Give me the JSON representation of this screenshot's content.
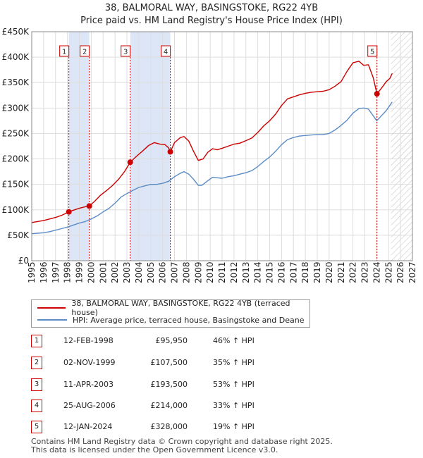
{
  "title_line1": "38, BALMORAL WAY, BASINGSTOKE, RG22 4YB",
  "title_line2": "Price paid vs. HM Land Registry's House Price Index (HPI)",
  "colors": {
    "price_line": "#cc0000",
    "hpi_line": "#5b8cc6",
    "shade": "#dde6f7",
    "marker": "#cc0000",
    "grid": "#dddddd"
  },
  "legend": {
    "price_label": "38, BALMORAL WAY, BASINGSTOKE, RG22 4YB (terraced house)",
    "hpi_label": "HPI: Average price, terraced house, Basingstoke and Deane"
  },
  "sales": [
    {
      "num": "1",
      "date": "12-FEB-1998",
      "price": "£95,950",
      "hpi": "46% ↑ HPI"
    },
    {
      "num": "2",
      "date": "02-NOV-1999",
      "price": "£107,500",
      "hpi": "35% ↑ HPI"
    },
    {
      "num": "3",
      "date": "11-APR-2003",
      "price": "£193,500",
      "hpi": "53% ↑ HPI"
    },
    {
      "num": "4",
      "date": "25-AUG-2006",
      "price": "£214,000",
      "hpi": "33% ↑ HPI"
    },
    {
      "num": "5",
      "date": "12-JAN-2024",
      "price": "£328,000",
      "hpi": "19% ↑ HPI"
    }
  ],
  "footer_line1": "Contains HM Land Registry data © Crown copyright and database right 2025.",
  "footer_line2": "This data is licensed under the Open Government Licence v3.0.",
  "chart_data": {
    "type": "line",
    "title": "38, BALMORAL WAY, BASINGSTOKE, RG22 4YB",
    "subtitle": "Price paid vs. HM Land Registry's House Price Index (HPI)",
    "xlabel": "",
    "ylabel": "",
    "xlim": [
      1995,
      2027
    ],
    "ylim": [
      0,
      450000
    ],
    "y_ticks": [
      0,
      50000,
      100000,
      150000,
      200000,
      250000,
      300000,
      350000,
      400000,
      450000
    ],
    "y_tick_labels": [
      "£0",
      "£50K",
      "£100K",
      "£150K",
      "£200K",
      "£250K",
      "£300K",
      "£350K",
      "£400K",
      "£450K"
    ],
    "x_ticks": [
      1995,
      1996,
      1997,
      1998,
      1999,
      2000,
      2001,
      2002,
      2003,
      2004,
      2005,
      2006,
      2007,
      2008,
      2009,
      2010,
      2011,
      2012,
      2013,
      2014,
      2015,
      2016,
      2017,
      2018,
      2019,
      2020,
      2021,
      2022,
      2023,
      2024,
      2025,
      2026,
      2027
    ],
    "grid": true,
    "legend_position": "bottom",
    "shaded_periods": [
      [
        1998.12,
        1999.84
      ],
      [
        2003.28,
        2006.65
      ]
    ],
    "future_hatch_from": 2025.2,
    "series": [
      {
        "name": "38, BALMORAL WAY, BASINGSTOKE, RG22 4YB (terraced house)",
        "x": [
          1995.0,
          1995.5,
          1996.0,
          1996.5,
          1997.0,
          1997.5,
          1998.12,
          1998.6,
          1999.0,
          1999.5,
          1999.84,
          2000.3,
          2000.8,
          2001.3,
          2001.8,
          2002.3,
          2002.8,
          2003.28,
          2003.8,
          2004.3,
          2004.8,
          2005.3,
          2005.8,
          2006.2,
          2006.5,
          2006.65,
          2007.0,
          2007.5,
          2007.8,
          2008.2,
          2008.6,
          2009.0,
          2009.4,
          2009.8,
          2010.2,
          2010.6,
          2011.0,
          2011.5,
          2012.0,
          2012.5,
          2013.0,
          2013.5,
          2014.0,
          2014.5,
          2015.0,
          2015.5,
          2016.0,
          2016.5,
          2017.0,
          2017.5,
          2018.0,
          2018.5,
          2019.0,
          2019.5,
          2020.0,
          2020.5,
          2021.0,
          2021.5,
          2022.0,
          2022.5,
          2022.9,
          2023.3,
          2023.7,
          2024.02,
          2024.4,
          2024.8,
          2025.1,
          2025.3
        ],
        "values": [
          75000,
          77000,
          79000,
          82000,
          85000,
          89000,
          95950,
          100000,
          103000,
          106000,
          107500,
          117000,
          129000,
          138000,
          148000,
          160000,
          175000,
          193500,
          205000,
          215000,
          226000,
          232000,
          229000,
          228000,
          222000,
          214000,
          232000,
          242000,
          244000,
          235000,
          215000,
          197000,
          200000,
          213000,
          220000,
          218000,
          221000,
          225000,
          229000,
          231000,
          236000,
          241000,
          252000,
          265000,
          275000,
          288000,
          305000,
          318000,
          322000,
          326000,
          329000,
          331000,
          332000,
          333000,
          336000,
          343000,
          352000,
          372000,
          389000,
          392000,
          384000,
          385000,
          360000,
          328000,
          339000,
          352000,
          358000,
          368000
        ]
      },
      {
        "name": "HPI: Average price, terraced house, Basingstoke and Deane",
        "x": [
          1995.0,
          1995.5,
          1996.0,
          1996.5,
          1997.0,
          1997.5,
          1998.0,
          1998.5,
          1999.0,
          1999.5,
          2000.0,
          2000.5,
          2001.0,
          2001.5,
          2002.0,
          2002.5,
          2003.0,
          2003.5,
          2004.0,
          2004.5,
          2005.0,
          2005.5,
          2006.0,
          2006.5,
          2007.0,
          2007.5,
          2007.8,
          2008.2,
          2008.6,
          2009.0,
          2009.3,
          2009.8,
          2010.2,
          2010.6,
          2011.0,
          2011.5,
          2012.0,
          2012.5,
          2013.0,
          2013.5,
          2014.0,
          2014.5,
          2015.0,
          2015.5,
          2016.0,
          2016.5,
          2017.0,
          2017.5,
          2018.0,
          2018.5,
          2019.0,
          2019.5,
          2020.0,
          2020.5,
          2021.0,
          2021.5,
          2022.0,
          2022.5,
          2022.9,
          2023.3,
          2023.7,
          2024.0,
          2024.4,
          2024.8,
          2025.1,
          2025.3
        ],
        "values": [
          53000,
          54000,
          55000,
          57000,
          60000,
          63000,
          66000,
          70000,
          74000,
          77000,
          82000,
          88000,
          96000,
          103000,
          113000,
          125000,
          132000,
          138000,
          144000,
          147000,
          150000,
          150000,
          152000,
          156000,
          165000,
          172000,
          175000,
          170000,
          160000,
          148000,
          148000,
          157000,
          164000,
          163000,
          162000,
          165000,
          167000,
          170000,
          173000,
          177000,
          185000,
          195000,
          204000,
          215000,
          228000,
          238000,
          242000,
          245000,
          246000,
          247000,
          248000,
          248000,
          250000,
          257000,
          266000,
          276000,
          290000,
          299000,
          300000,
          298000,
          285000,
          275000,
          285000,
          295000,
          305000,
          312000
        ]
      }
    ],
    "sale_markers": [
      {
        "label": "1",
        "x": 1998.12,
        "y": 95950
      },
      {
        "label": "2",
        "x": 1999.84,
        "y": 107500
      },
      {
        "label": "3",
        "x": 2003.28,
        "y": 193500
      },
      {
        "label": "4",
        "x": 2006.65,
        "y": 214000
      },
      {
        "label": "5",
        "x": 2024.02,
        "y": 328000
      }
    ]
  }
}
